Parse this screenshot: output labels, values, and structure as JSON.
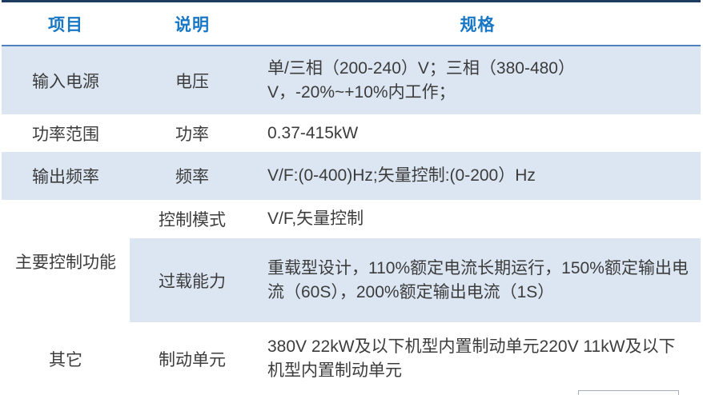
{
  "colors": {
    "header_text": "#1877c5",
    "top_border": "#1d3a5f",
    "header_rule": "#4f81bd",
    "row_alt_bg": "#dce6f2",
    "body_text": "#3c3c3c",
    "page_bg": "#ffffff"
  },
  "table": {
    "headers": {
      "item": "项目",
      "desc": "说明",
      "spec": "规格"
    },
    "rows": [
      {
        "item": "输入电源",
        "desc": "电压",
        "spec": "单/三相（200-240）V；三相（380-480）V，-20%~+10%内工作；"
      },
      {
        "item": "功率范围",
        "desc": "功率",
        "spec": "0.37-415kW"
      },
      {
        "item": "输出频率",
        "desc": "频率",
        "spec": "V/F:(0-400)Hz;矢量控制:(0-200）Hz"
      },
      {
        "item": "主要控制功能",
        "sub_rows": [
          {
            "desc": "控制模式",
            "spec": "V/F,矢量控制"
          },
          {
            "desc": "过载能力",
            "spec": "重载型设计，110%额定电流长期运行，150%额定输出电流（60S），200%额定输出电流（1S）"
          }
        ]
      },
      {
        "item": "其它",
        "desc": "制动单元",
        "spec": "380V 22kW及以下机型内置制动单元220V 11kW及以下机型内置制动单元"
      }
    ]
  }
}
